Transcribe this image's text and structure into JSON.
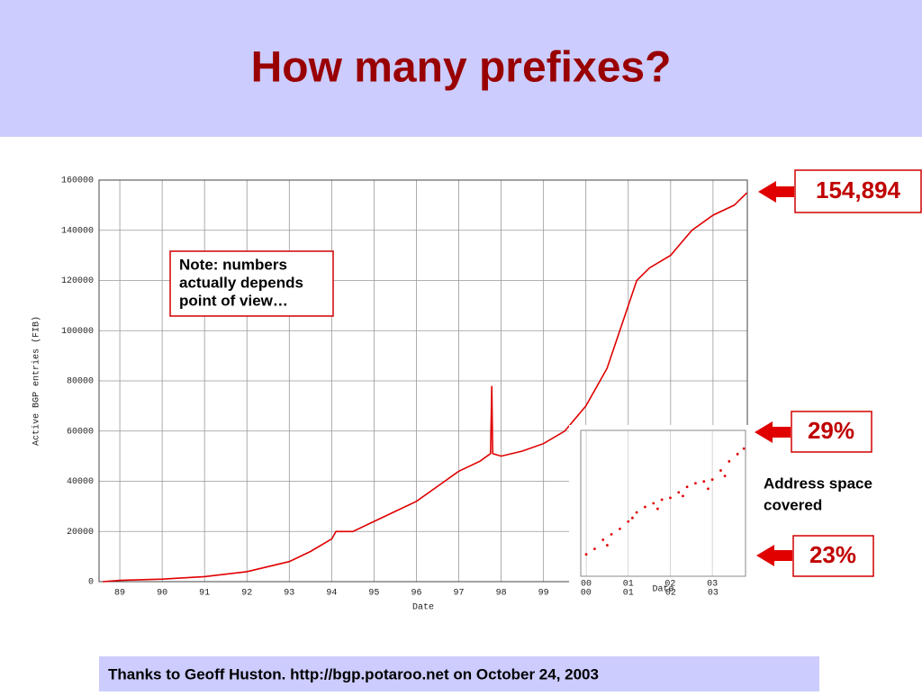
{
  "slide": {
    "title": "How many prefixes?",
    "note": [
      "Note: numbers",
      "actually depends",
      "point of view…"
    ],
    "callouts": [
      "154,894",
      "29%",
      "23%"
    ],
    "side_text": [
      "Address space",
      "covered"
    ],
    "footer": "Thanks to Geoff Huston. http://bgp.potaroo.net on October 24, 2003"
  },
  "chart_data": [
    {
      "type": "line",
      "x_label": "Date",
      "y_label": "Active BGP entries (FIB)",
      "x": [
        1988.6,
        1989,
        1990,
        1991,
        1992,
        1993,
        1993.5,
        1994,
        1994.1,
        1994.5,
        1995,
        1995.5,
        1996,
        1996.5,
        1997,
        1997.5,
        1997.75,
        1997.78,
        1997.8,
        1998,
        1998.5,
        1999,
        1999.5,
        2000,
        2000.5,
        2000.9,
        2001.2,
        2001.5,
        2002,
        2002.5,
        2003,
        2003.5,
        2003.8
      ],
      "series": [
        {
          "name": "FIB",
          "color": "#e00000",
          "values": [
            0,
            500,
            1000,
            2000,
            4000,
            8000,
            12000,
            17000,
            20000,
            20000,
            24000,
            28000,
            32000,
            38000,
            44000,
            48000,
            51000,
            78000,
            51000,
            50000,
            52000,
            55000,
            60000,
            70000,
            85000,
            105000,
            120000,
            125000,
            130000,
            140000,
            146000,
            150000,
            154894
          ]
        }
      ],
      "xlim": [
        1988.51,
        2003.81
      ],
      "ylim": [
        0,
        160000
      ],
      "xticks": [
        {
          "value": 1989,
          "label": "89"
        },
        {
          "value": 1990,
          "label": "90"
        },
        {
          "value": 1991,
          "label": "91"
        },
        {
          "value": 1992,
          "label": "92"
        },
        {
          "value": 1993,
          "label": "93"
        },
        {
          "value": 1994,
          "label": "94"
        },
        {
          "value": 1995,
          "label": "95"
        },
        {
          "value": 1996,
          "label": "96"
        },
        {
          "value": 1997,
          "label": "97"
        },
        {
          "value": 1998,
          "label": "98"
        },
        {
          "value": 1999,
          "label": "99"
        },
        {
          "value": 2000,
          "label": "00"
        },
        {
          "value": 2001,
          "label": "01"
        },
        {
          "value": 2002,
          "label": "02"
        },
        {
          "value": 2003,
          "label": "03"
        }
      ],
      "yticks": [
        0,
        20000,
        40000,
        60000,
        80000,
        100000,
        120000,
        140000,
        160000
      ],
      "grid": true
    },
    {
      "type": "scatter",
      "x_label": "Date",
      "x": [
        2000.0,
        2000.2,
        2000.4,
        2000.6,
        2000.8,
        2001.0,
        2001.2,
        2001.4,
        2001.6,
        2001.8,
        2002.0,
        2002.2,
        2002.4,
        2002.6,
        2002.8,
        2003.0,
        2003.2,
        2003.4,
        2003.6,
        2003.75,
        2000.5,
        2001.1,
        2001.7,
        2002.3,
        2002.9,
        2003.3
      ],
      "series": [
        {
          "name": "Address space",
          "color": "#e00000",
          "values": [
            23.2,
            23.5,
            24.0,
            24.3,
            24.6,
            25.0,
            25.5,
            25.8,
            26.0,
            26.2,
            26.3,
            26.6,
            26.9,
            27.1,
            27.2,
            27.3,
            27.8,
            28.3,
            28.7,
            29.0,
            23.7,
            25.2,
            25.7,
            26.4,
            26.8,
            27.5
          ]
        }
      ],
      "xlim": [
        1999.87,
        2003.79
      ],
      "ylim": [
        22,
        30
      ],
      "xticks": [
        {
          "value": 2000,
          "label": "00"
        },
        {
          "value": 2001,
          "label": "01"
        },
        {
          "value": 2002,
          "label": "02"
        },
        {
          "value": 2003,
          "label": "03"
        }
      ],
      "grid": true
    }
  ]
}
